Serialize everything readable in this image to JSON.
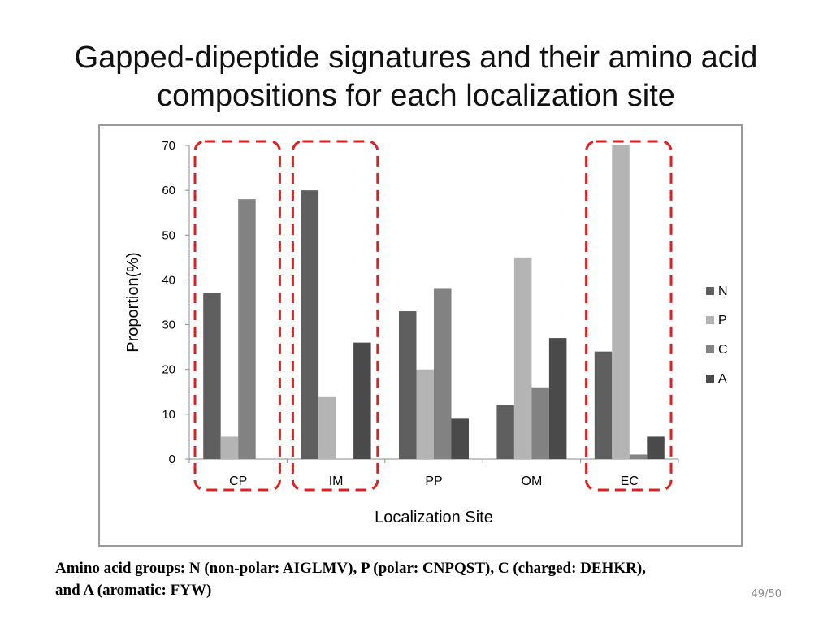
{
  "slide": {
    "title_line1": "Gapped-dipeptide signatures and their amino acid",
    "title_line2": "compositions for each localization site",
    "footnote_line1": "Amino acid groups: N (non-polar: AIGLMV), P (polar: CNPQST), C (charged: DEHKR),",
    "footnote_line2": "and A (aromatic: FYW)",
    "page_number": "49/50"
  },
  "chart_data": {
    "type": "bar",
    "title": "",
    "xlabel": "Localization Site",
    "ylabel": "Proportion(%)",
    "categories": [
      "CP",
      "IM",
      "PP",
      "OM",
      "EC"
    ],
    "ylim": [
      0,
      70
    ],
    "yticks": [
      0,
      10,
      20,
      30,
      40,
      50,
      60,
      70
    ],
    "grid": false,
    "legend_position": "right",
    "series": [
      {
        "name": "N",
        "color": "#5f5f5f",
        "values": [
          37,
          60,
          33,
          12,
          24
        ]
      },
      {
        "name": "P",
        "color": "#b4b4b4",
        "values": [
          5,
          14,
          20,
          45,
          70
        ]
      },
      {
        "name": "C",
        "color": "#828282",
        "values": [
          58,
          0,
          38,
          16,
          1
        ]
      },
      {
        "name": "A",
        "color": "#4a4a4a",
        "values": [
          0,
          26,
          9,
          27,
          5
        ]
      }
    ],
    "highlighted_categories": [
      "CP",
      "IM",
      "EC"
    ],
    "highlight_color": "#e02020"
  }
}
